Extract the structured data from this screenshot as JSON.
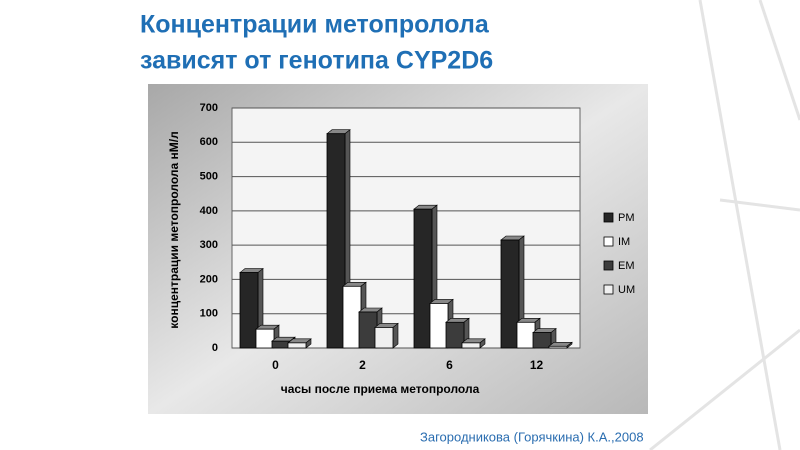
{
  "chart_data": {
    "type": "bar",
    "title": [
      "Концентрации метопролола",
      "зависят от генотипа CYP2D6"
    ],
    "xlabel": "часы после приема метопролола",
    "ylabel": "концентрации метопролола нМ/л",
    "categories": [
      "0",
      "2",
      "6",
      "12"
    ],
    "series": [
      {
        "name": "PM",
        "color": "#262626",
        "values": [
          220,
          625,
          405,
          315
        ]
      },
      {
        "name": "IM",
        "color": "#ffffff",
        "values": [
          55,
          180,
          130,
          75
        ]
      },
      {
        "name": "EM",
        "color": "#3c3c3c",
        "values": [
          20,
          105,
          75,
          45
        ]
      },
      {
        "name": "UM",
        "color": "#f0f0f0",
        "values": [
          15,
          60,
          15,
          5
        ]
      }
    ],
    "ylim": [
      0,
      700
    ],
    "yticks": [
      0,
      100,
      200,
      300,
      400,
      500,
      600,
      700
    ],
    "grid": true,
    "legend": "right",
    "source": "Загородникова (Горячкина) К.А.,2008"
  }
}
